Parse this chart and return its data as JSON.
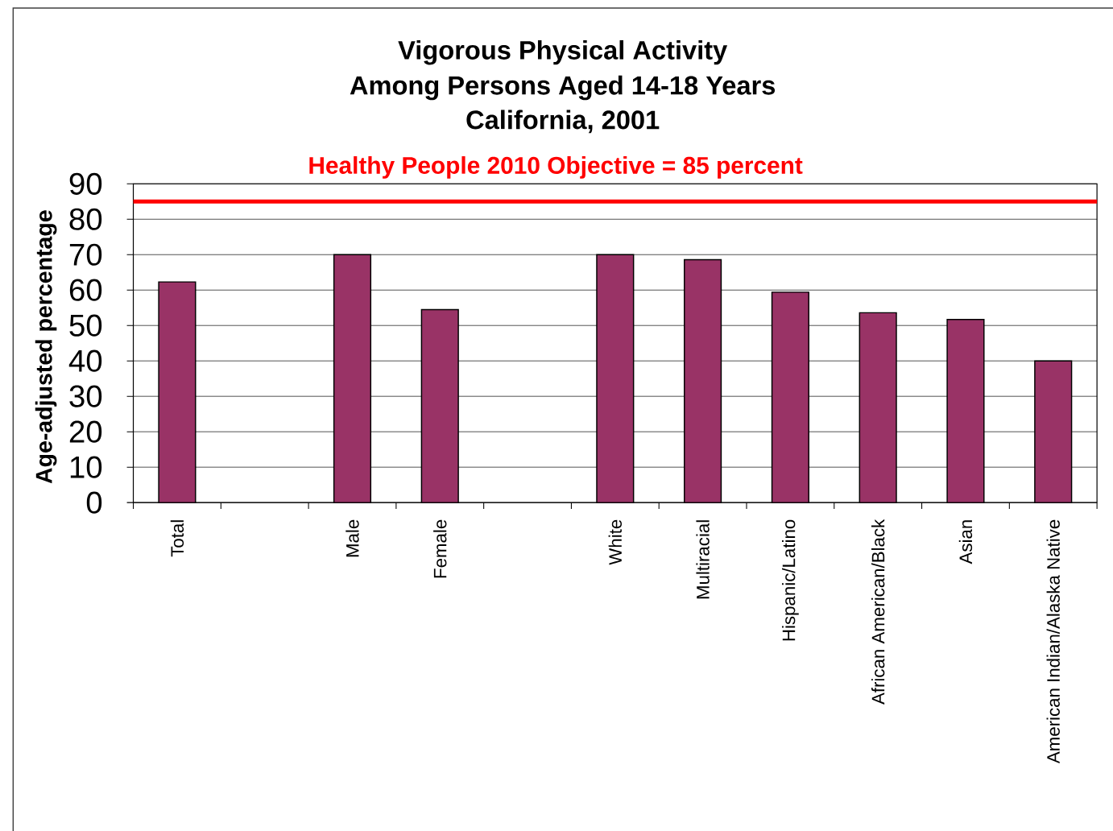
{
  "chart_data": {
    "type": "bar",
    "title": "Vigorous Physical Activity",
    "subtitle": "Among Persons Aged 14-18 Years California, 2001",
    "ylabel": "Age-adjusted percentage",
    "categories": [
      "Total",
      null,
      "Male",
      "Female",
      null,
      "White",
      "Multiracial",
      "Hispanic/Latino",
      "African American/Black",
      "Asian",
      "American Indian/Alaska Native"
    ],
    "values": [
      62.3,
      null,
      70,
      54.5,
      null,
      70,
      68.6,
      59.4,
      53.6,
      51.7,
      40
    ],
    "color": "#993366",
    "ylim": [
      0,
      90
    ],
    "yticks": [
      0,
      10,
      20,
      30,
      40,
      50,
      60,
      70,
      80,
      90
    ],
    "grid": "y",
    "ref_lines": [
      {
        "axis": "y",
        "value": 85,
        "label": "Healthy People 2010 Objective = 85 percent",
        "color": "#ff0000"
      }
    ]
  }
}
